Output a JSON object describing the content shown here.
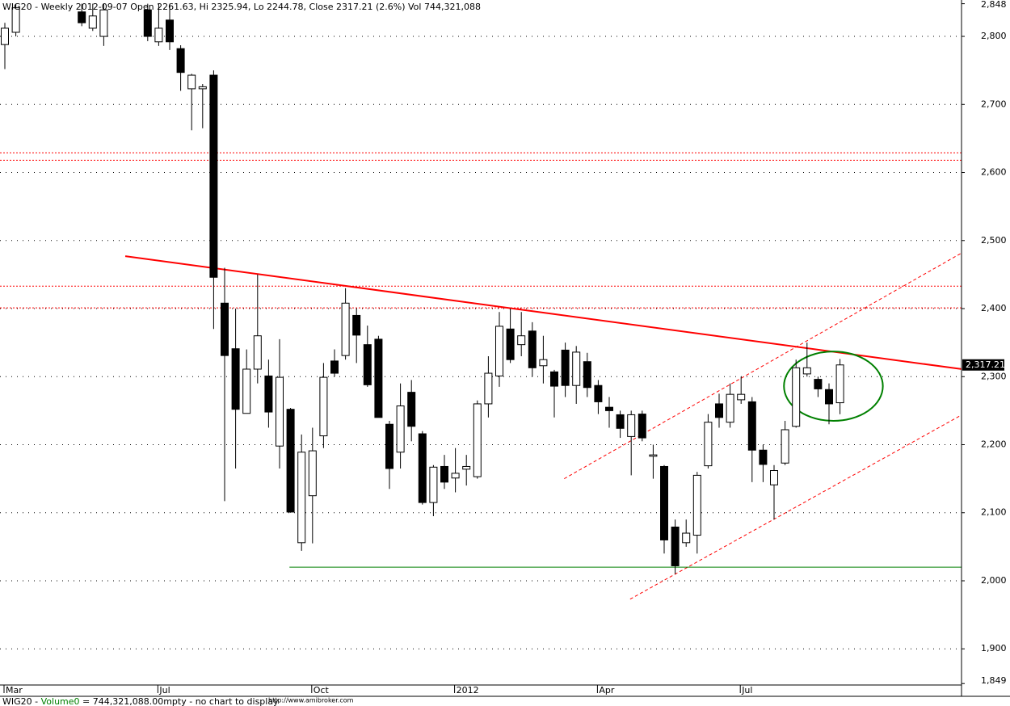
{
  "chart_data": {
    "type": "candlestick",
    "title": "WIG20 - Weekly 2012-09-07 Open 2261.63, Hi 2325.94, Lo 2244.78, Close 2317.21 (2.6%) Vol 744,321,088",
    "footer": [
      "WIG20 - ",
      "Volume0",
      " = 744,321,088.00mpty - no chart to display"
    ],
    "footer_url": "http://www.amibroker.com",
    "categories": [
      "Mar",
      null,
      null,
      null,
      null,
      null,
      null,
      null,
      null,
      null,
      null,
      null,
      null,
      null,
      "Jul",
      null,
      null,
      null,
      null,
      null,
      null,
      null,
      null,
      null,
      null,
      null,
      null,
      null,
      "Oct",
      null,
      null,
      null,
      null,
      null,
      null,
      null,
      null,
      null,
      null,
      null,
      null,
      "2012",
      null,
      null,
      null,
      null,
      null,
      null,
      null,
      null,
      null,
      null,
      null,
      null,
      "Apr",
      null,
      null,
      null,
      null,
      null,
      null,
      null,
      null,
      null,
      null,
      null,
      null,
      "Jul",
      null,
      null,
      null,
      null,
      null,
      null,
      null,
      null,
      null
    ],
    "open": [
      2788,
      2806,
      null,
      null,
      null,
      null,
      null,
      2836,
      2812,
      2800,
      null,
      null,
      null,
      2839,
      2792,
      2824,
      2782,
      2723,
      2723,
      2743,
      2408,
      2341,
      2246,
      2311,
      2301,
      2198,
      2252,
      2056,
      2125,
      2213,
      2323,
      2331,
      2390,
      2347,
      2355,
      2230,
      2189,
      2277,
      2216,
      2115,
      2168,
      2151,
      2164,
      2153,
      2260,
      2301,
      2370,
      2347,
      2367,
      2316,
      2307,
      2339,
      2287,
      2322,
      2287,
      2255,
      2244,
      2212,
      2245,
      2183,
      2168,
      2079,
      2056,
      2067,
      2169,
      2260,
      2233,
      2266,
      2263,
      2192,
      2141,
      2173,
      2227,
      2304,
      2296,
      2281,
      2261.63
    ],
    "high": [
      2820,
      2848,
      null,
      null,
      null,
      null,
      null,
      2848,
      2848,
      2848,
      null,
      null,
      null,
      2848,
      2848,
      2848,
      2787,
      2745,
      2730,
      2750,
      2460,
      2400,
      2340,
      2450,
      2325,
      2355,
      2254,
      2215,
      2225,
      2320,
      2340,
      2430,
      2400,
      2375,
      2360,
      2235,
      2290,
      2295,
      2220,
      2170,
      2185,
      2195,
      2185,
      2265,
      2330,
      2395,
      2400,
      2395,
      2380,
      2360,
      2310,
      2350,
      2345,
      2335,
      2295,
      2270,
      2250,
      2250,
      2250,
      2200,
      2170,
      2090,
      2090,
      2160,
      2245,
      2275,
      2290,
      2300,
      2270,
      2200,
      2170,
      2235,
      2325,
      2350,
      2300,
      2290,
      2325.94
    ],
    "low": [
      2752,
      2800,
      null,
      null,
      null,
      null,
      null,
      2815,
      2808,
      2786,
      null,
      null,
      null,
      2793,
      2786,
      2780,
      2720,
      2662,
      2665,
      2370,
      2117,
      2165,
      2246,
      2290,
      2225,
      2165,
      2100,
      2044,
      2055,
      2195,
      2300,
      2325,
      2320,
      2285,
      2240,
      2135,
      2165,
      2205,
      2112,
      2095,
      2135,
      2130,
      2140,
      2150,
      2240,
      2285,
      2320,
      2330,
      2300,
      2290,
      2240,
      2270,
      2260,
      2270,
      2245,
      2225,
      2210,
      2155,
      2205,
      2150,
      2040,
      2010,
      2050,
      2040,
      2165,
      2225,
      2225,
      2260,
      2145,
      2145,
      2090,
      2170,
      2225,
      2300,
      2270,
      2230,
      2244.78
    ],
    "close": [
      2812,
      2842,
      null,
      null,
      null,
      null,
      null,
      2820,
      2830,
      2839,
      null,
      null,
      null,
      2800,
      2812,
      2792,
      2747,
      2743,
      2726,
      2446,
      2331,
      2252,
      2311,
      2360,
      2248,
      2299,
      2101,
      2189,
      2191,
      2299,
      2305,
      2408,
      2361,
      2288,
      2240,
      2165,
      2257,
      2227,
      2115,
      2167,
      2145,
      2158,
      2168,
      2260,
      2305,
      2374,
      2325,
      2360,
      2313,
      2325,
      2286,
      2287,
      2336,
      2284,
      2263,
      2250,
      2224,
      2244,
      2210,
      2185,
      2060,
      2022,
      2070,
      2155,
      2233,
      2240,
      2274,
      2274,
      2192,
      2171,
      2162,
      2222,
      2313,
      2313,
      2282,
      2260,
      2317.21
    ],
    "up_color": "#ffffff",
    "down_color": "#000000",
    "last_price": {
      "value": 2317.21,
      "label": "2,317.21"
    },
    "ylim": [
      1849,
      2848
    ],
    "yticks": [
      {
        "value": 1849,
        "label": "1,849"
      },
      {
        "value": 1900,
        "label": "1,900"
      },
      {
        "value": 2000,
        "label": "2,000"
      },
      {
        "value": 2100,
        "label": "2,100"
      },
      {
        "value": 2200,
        "label": "2,200"
      },
      {
        "value": 2300,
        "label": "2,300"
      },
      {
        "value": 2400,
        "label": "2,400"
      },
      {
        "value": 2500,
        "label": "2,500"
      },
      {
        "value": 2600,
        "label": "2,600"
      },
      {
        "value": 2700,
        "label": "2,700"
      },
      {
        "value": 2800,
        "label": "2,800"
      },
      {
        "value": 2848,
        "label": "2,848"
      }
    ],
    "grid": true,
    "annotations": [
      {
        "kind": "trendline",
        "color": "#ff0000",
        "x": [
          10.96,
          87.1
        ],
        "y": [
          2477,
          2311
        ]
      },
      {
        "kind": "dashed",
        "color": "#ff0000",
        "x": [
          50.9,
          87.1
        ],
        "y": [
          2150,
          2482
        ]
      },
      {
        "kind": "dashed",
        "color": "#ff0000",
        "x": [
          56.9,
          87.1
        ],
        "y": [
          1973,
          2244
        ]
      },
      {
        "kind": "hline",
        "color": "#008000",
        "x": [
          25.9,
          87.1
        ],
        "y": [
          2020,
          2020
        ]
      },
      {
        "kind": "level",
        "color": "#ff0000",
        "y": [
          2629
        ]
      },
      {
        "kind": "level",
        "color": "#ff0000",
        "y": [
          2618
        ]
      },
      {
        "kind": "level",
        "color": "#ff0000",
        "y": [
          2433
        ]
      },
      {
        "kind": "level",
        "color": "#ff0000",
        "y": [
          2401
        ]
      },
      {
        "kind": "ellipse",
        "color": "#008000",
        "x": [
          75.4
        ],
        "y": [
          2286
        ],
        "rx": [
          4.5
        ],
        "ry": [
          51
        ]
      }
    ]
  }
}
